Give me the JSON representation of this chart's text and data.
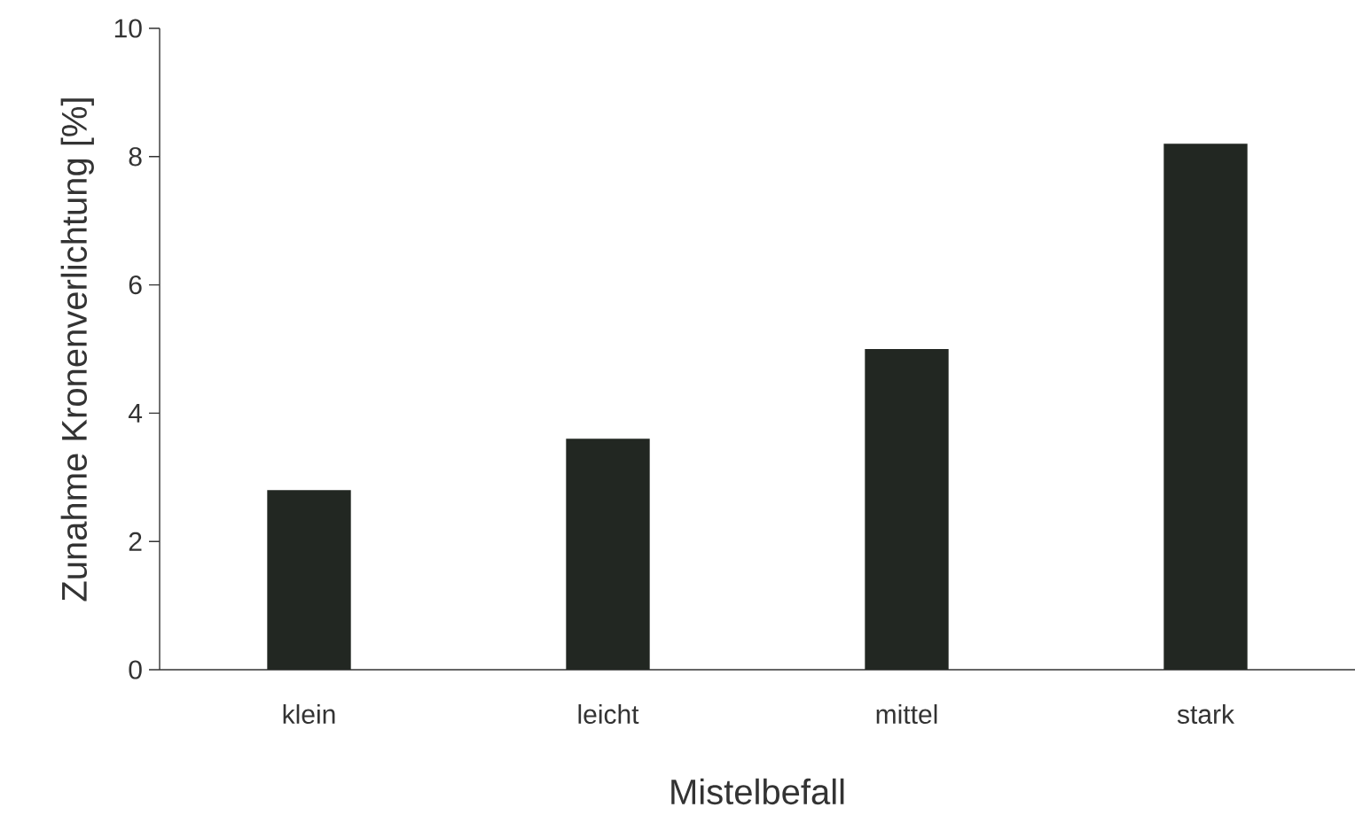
{
  "chart_data": {
    "type": "bar",
    "xlabel": "Mistelbefall",
    "ylabel": "Zunahme Kronenverlichtung [%]",
    "categories": [
      "klein",
      "leicht",
      "mittel",
      "stark"
    ],
    "values": [
      2.8,
      3.6,
      5.0,
      8.2
    ],
    "color": "#222722",
    "ylim": [
      0,
      10
    ],
    "yticks": [
      0,
      2,
      4,
      6,
      8,
      10
    ]
  }
}
